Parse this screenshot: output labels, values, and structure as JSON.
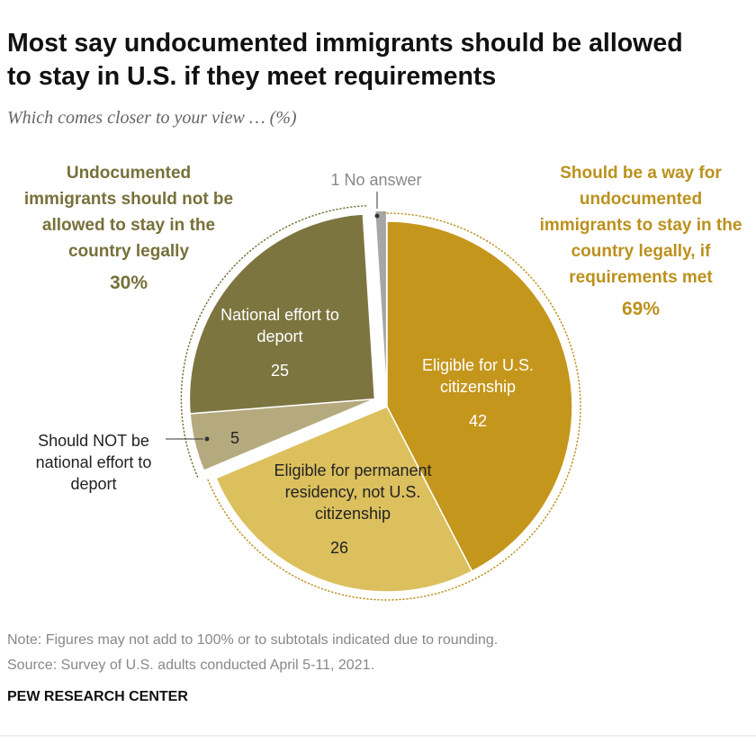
{
  "chart_data": {
    "type": "pie",
    "title": "Most say undocumented immigrants should be allowed to stay in U.S. if they meet requirements",
    "subtitle": "Which comes closer to your view … (%)",
    "categories": [
      "Eligible for U.S. citizenship",
      "Eligible for permanent residency, not U.S. citizenship",
      "Should NOT be national effort to deport",
      "National effort to deport",
      "No answer"
    ],
    "values": [
      42,
      26,
      5,
      25,
      1
    ],
    "colors": [
      "#c4961c",
      "#dcc05e",
      "#b5aa7e",
      "#7d7540",
      "#a6a6a6"
    ],
    "groups": [
      {
        "label": "Should be a way for undocumented immigrants to stay in the country legally, if requirements met",
        "value": 69,
        "value_label": "69%",
        "color": "#bb911c"
      },
      {
        "label": "Undocumented immigrants should not be allowed to stay in the country legally",
        "value": 30,
        "value_label": "30%",
        "color": "#77703a"
      }
    ],
    "note": "Note: Figures may not add to 100% or to subtotals indicated due to rounding.",
    "source": "Source: Survey of U.S. adults conducted April 5-11, 2021.",
    "credit": "PEW RESEARCH CENTER"
  }
}
